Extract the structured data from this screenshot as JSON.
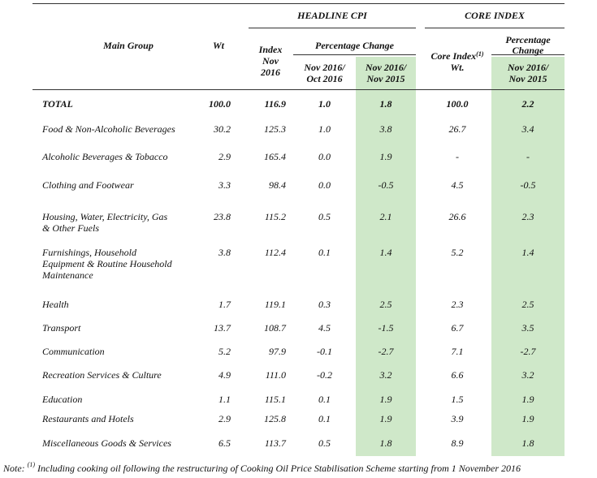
{
  "header": {
    "headline_cpi": "HEADLINE CPI",
    "core_index": "CORE INDEX",
    "main_group": "Main Group",
    "wt": "Wt",
    "index_line1": "Index",
    "index_line2": "Nov",
    "index_line3": "2016",
    "pct_change": "Percentage Change",
    "col_mom_l1": "Nov 2016/",
    "col_mom_l2": "Oct 2016",
    "col_yoy_l1": "Nov 2016/",
    "col_yoy_l2": "Nov 2015",
    "core_wt_l1": "Core Index",
    "core_wt_sup": "(1)",
    "core_wt_l2": "Wt.",
    "core_pct_l1": "Percentage",
    "core_pct_l2": "Change",
    "core_yoy_l1": "Nov 2016/",
    "core_yoy_l2": "Nov 2015"
  },
  "rows": [
    {
      "lines": [
        "TOTAL"
      ],
      "wt": "100.0",
      "index": "116.9",
      "mom": "1.0",
      "yoy": "1.8",
      "core_wt": "100.0",
      "core_yoy": "2.2",
      "bold": true
    },
    {
      "lines": [
        "Food & Non-Alcoholic Beverages"
      ],
      "wt": "30.2",
      "index": "125.3",
      "mom": "1.0",
      "yoy": "3.8",
      "core_wt": "26.7",
      "core_yoy": "3.4"
    },
    {
      "lines": [
        "Alcoholic Beverages & Tobacco"
      ],
      "wt": "2.9",
      "index": "165.4",
      "mom": "0.0",
      "yoy": "1.9",
      "core_wt": "-",
      "core_yoy": "-"
    },
    {
      "lines": [
        "Clothing and Footwear"
      ],
      "wt": "3.3",
      "index": "98.4",
      "mom": "0.0",
      "yoy": "-0.5",
      "core_wt": "4.5",
      "core_yoy": "-0.5"
    },
    {
      "lines": [
        "Housing, Water, Electricity, Gas",
        "& Other Fuels"
      ],
      "wt": "23.8",
      "index": "115.2",
      "mom": "0.5",
      "yoy": "2.1",
      "core_wt": "26.6",
      "core_yoy": "2.3"
    },
    {
      "lines": [
        "Furnishings, Household",
        "Equipment & Routine Household",
        "Maintenance"
      ],
      "wt": "3.8",
      "index": "112.4",
      "mom": "0.1",
      "yoy": "1.4",
      "core_wt": "5.2",
      "core_yoy": "1.4"
    },
    {
      "lines": [
        "Health"
      ],
      "wt": "1.7",
      "index": "119.1",
      "mom": "0.3",
      "yoy": "2.5",
      "core_wt": "2.3",
      "core_yoy": "2.5"
    },
    {
      "lines": [
        "Transport"
      ],
      "wt": "13.7",
      "index": "108.7",
      "mom": "4.5",
      "yoy": "-1.5",
      "core_wt": "6.7",
      "core_yoy": "3.5"
    },
    {
      "lines": [
        "Communication"
      ],
      "wt": "5.2",
      "index": "97.9",
      "mom": "-0.1",
      "yoy": "-2.7",
      "core_wt": "7.1",
      "core_yoy": "-2.7"
    },
    {
      "lines": [
        "Recreation Services & Culture"
      ],
      "wt": "4.9",
      "index": "111.0",
      "mom": "-0.2",
      "yoy": "3.2",
      "core_wt": "6.6",
      "core_yoy": "3.2"
    },
    {
      "lines": [
        "Education"
      ],
      "wt": "1.1",
      "index": "115.1",
      "mom": "0.1",
      "yoy": "1.9",
      "core_wt": "1.5",
      "core_yoy": "1.9"
    },
    {
      "lines": [
        "Restaurants and Hotels"
      ],
      "wt": "2.9",
      "index": "125.8",
      "mom": "0.1",
      "yoy": "1.9",
      "core_wt": "3.9",
      "core_yoy": "1.9"
    },
    {
      "lines": [
        "Miscellaneous Goods & Services"
      ],
      "wt": "6.5",
      "index": "113.7",
      "mom": "0.5",
      "yoy": "1.8",
      "core_wt": "8.9",
      "core_yoy": "1.8"
    }
  ],
  "note": {
    "prefix": "Note: ",
    "sup": "(1)",
    "text": " Including cooking oil following the restructuring of Cooking Oil Price Stabilisation Scheme starting from 1 November 2016"
  }
}
